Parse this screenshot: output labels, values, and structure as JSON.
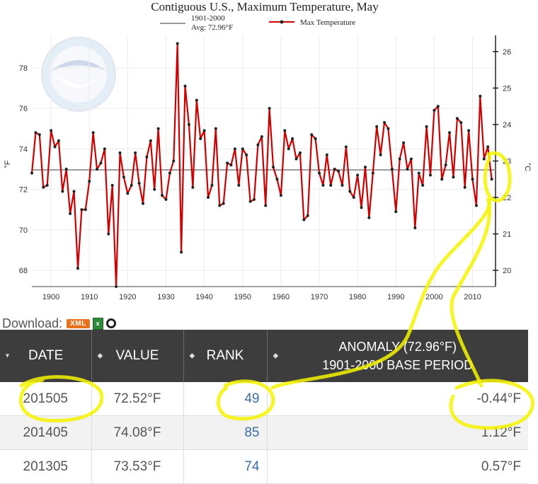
{
  "chart_data": {
    "type": "line",
    "title": "Contiguous U.S., Maximum Temperature, May",
    "legend": [
      {
        "label": "1901-2000",
        "sublabel": "Avg: 72.96°F",
        "color": "#999999"
      },
      {
        "label": "Max Temperature",
        "color": "#cc0000"
      }
    ],
    "ylabel": "°F",
    "y2label": "°C",
    "xlim": [
      1895,
      2016
    ],
    "ylim": [
      67.2,
      79.6
    ],
    "x_ticks": [
      "1900",
      "1910",
      "1920",
      "1930",
      "1940",
      "1950",
      "1960",
      "1970",
      "1980",
      "1990",
      "2000",
      "2010"
    ],
    "y_ticks": [
      "68",
      "70",
      "72",
      "74",
      "76",
      "78"
    ],
    "y2_ticks": [
      "20",
      "21",
      "22",
      "23",
      "24",
      "25",
      "26"
    ],
    "baseline": 72.96,
    "grid": true,
    "series": [
      {
        "name": "Max Temperature",
        "x": [
          1895,
          1896,
          1897,
          1898,
          1899,
          1900,
          1901,
          1902,
          1903,
          1904,
          1905,
          1906,
          1907,
          1908,
          1909,
          1910,
          1911,
          1912,
          1913,
          1914,
          1915,
          1916,
          1917,
          1918,
          1919,
          1920,
          1921,
          1922,
          1923,
          1924,
          1925,
          1926,
          1927,
          1928,
          1929,
          1930,
          1931,
          1932,
          1933,
          1934,
          1935,
          1936,
          1937,
          1938,
          1939,
          1940,
          1941,
          1942,
          1943,
          1944,
          1945,
          1946,
          1947,
          1948,
          1949,
          1950,
          1951,
          1952,
          1953,
          1954,
          1955,
          1956,
          1957,
          1958,
          1959,
          1960,
          1961,
          1962,
          1963,
          1964,
          1965,
          1966,
          1967,
          1968,
          1969,
          1970,
          1971,
          1972,
          1973,
          1974,
          1975,
          1976,
          1977,
          1978,
          1979,
          1980,
          1981,
          1982,
          1983,
          1984,
          1985,
          1986,
          1987,
          1988,
          1989,
          1990,
          1991,
          1992,
          1993,
          1994,
          1995,
          1996,
          1997,
          1998,
          1999,
          2000,
          2001,
          2002,
          2003,
          2004,
          2005,
          2006,
          2007,
          2008,
          2009,
          2010,
          2011,
          2012,
          2013,
          2014,
          2015
        ],
        "y": [
          72.8,
          74.8,
          74.7,
          72.1,
          72.2,
          74.9,
          74.1,
          74.4,
          71.9,
          73,
          70.8,
          71.9,
          68.1,
          71,
          71,
          72.4,
          74.8,
          73,
          73.3,
          74,
          69.8,
          72.2,
          67.2,
          73.8,
          72.6,
          71.8,
          72.2,
          73.8,
          72.3,
          71.3,
          73.6,
          74.4,
          72,
          75,
          71.7,
          71.5,
          72.8,
          73.4,
          79.2,
          68.9,
          77.1,
          75.2,
          72.1,
          76.4,
          74.5,
          74.9,
          71.6,
          72.2,
          75,
          71.2,
          71.3,
          73.3,
          73.2,
          74,
          72.2,
          74,
          73.7,
          71.4,
          71.5,
          74.2,
          74.6,
          71.2,
          76,
          73.1,
          72.5,
          71.7,
          74.9,
          74,
          74.5,
          73.5,
          73.8,
          70.5,
          70.7,
          74.7,
          74.5,
          72.8,
          72.2,
          73.7,
          72.2,
          73,
          72.9,
          72.2,
          74.1,
          71.9,
          71.6,
          72.7,
          71.1,
          73.1,
          70.6,
          72.8,
          75.1,
          73.7,
          75.3,
          75,
          73,
          70.9,
          73.5,
          74.3,
          73,
          73.5,
          70.1,
          72.8,
          72.2,
          75.1,
          72.7,
          75.9,
          76.1,
          72.5,
          73.2,
          74.8,
          72.6,
          75.5,
          75.3,
          72.1,
          74.9,
          72.5,
          71.2,
          76.6,
          73.5,
          74.1,
          72.5
        ]
      }
    ]
  },
  "download": {
    "label": "Download:",
    "xml": "XML"
  },
  "table": {
    "headers": {
      "date": "DATE",
      "value": "VALUE",
      "rank": "RANK",
      "anomaly_line1": "ANOMALY (72.96°F)",
      "anomaly_line2": "1901-2000 BASE PERIOD"
    },
    "rows": [
      {
        "date": "201505",
        "value": "72.52°F",
        "rank": "49",
        "anomaly": "-0.44°F"
      },
      {
        "date": "201405",
        "value": "74.08°F",
        "rank": "85",
        "anomaly": "1.12°F"
      },
      {
        "date": "201305",
        "value": "73.53°F",
        "rank": "74",
        "anomaly": "0.57°F"
      }
    ]
  },
  "colors": {
    "series": "#cc0000",
    "baseline": "#999999",
    "header_bg": "#3d3d3d",
    "rank_link": "#3a6ea5",
    "highlight": "#f5f500"
  }
}
